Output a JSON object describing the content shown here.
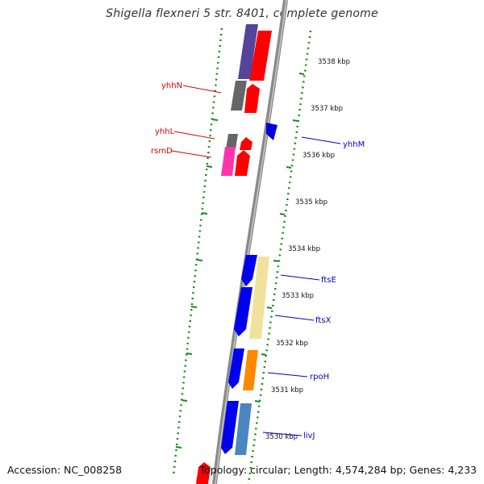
{
  "title": "Shigella flexneri 5 str. 8401, complete genome",
  "footer": {
    "accession": "Accession: NC_008258",
    "summary": "Topology: circular; Length: 4,574,284 bp; Genes: 4,233"
  },
  "colors": {
    "backbone": "#8a8a8a",
    "ticks": "#1a8a1a",
    "forward_label": "#e00000",
    "reverse_label": "#0000cc"
  },
  "scale_ticks": [
    "3538 kbp",
    "3537 kbp",
    "3536 kbp",
    "3535 kbp",
    "3534 kbp",
    "3533 kbp",
    "3532 kbp",
    "3531 kbp",
    "3530 kbp"
  ],
  "gene_labels": [
    {
      "name": "yhhN",
      "color": "#e00000"
    },
    {
      "name": "yhhL",
      "color": "#e00000"
    },
    {
      "name": "rsmD",
      "color": "#e00000"
    },
    {
      "name": "yhhM",
      "color": "#0000cc"
    },
    {
      "name": "ftsE",
      "color": "#0000cc"
    },
    {
      "name": "ftsX",
      "color": "#0000cc"
    },
    {
      "name": "rpoH",
      "color": "#0000cc"
    },
    {
      "name": "livJ",
      "color": "#0000cc"
    }
  ]
}
